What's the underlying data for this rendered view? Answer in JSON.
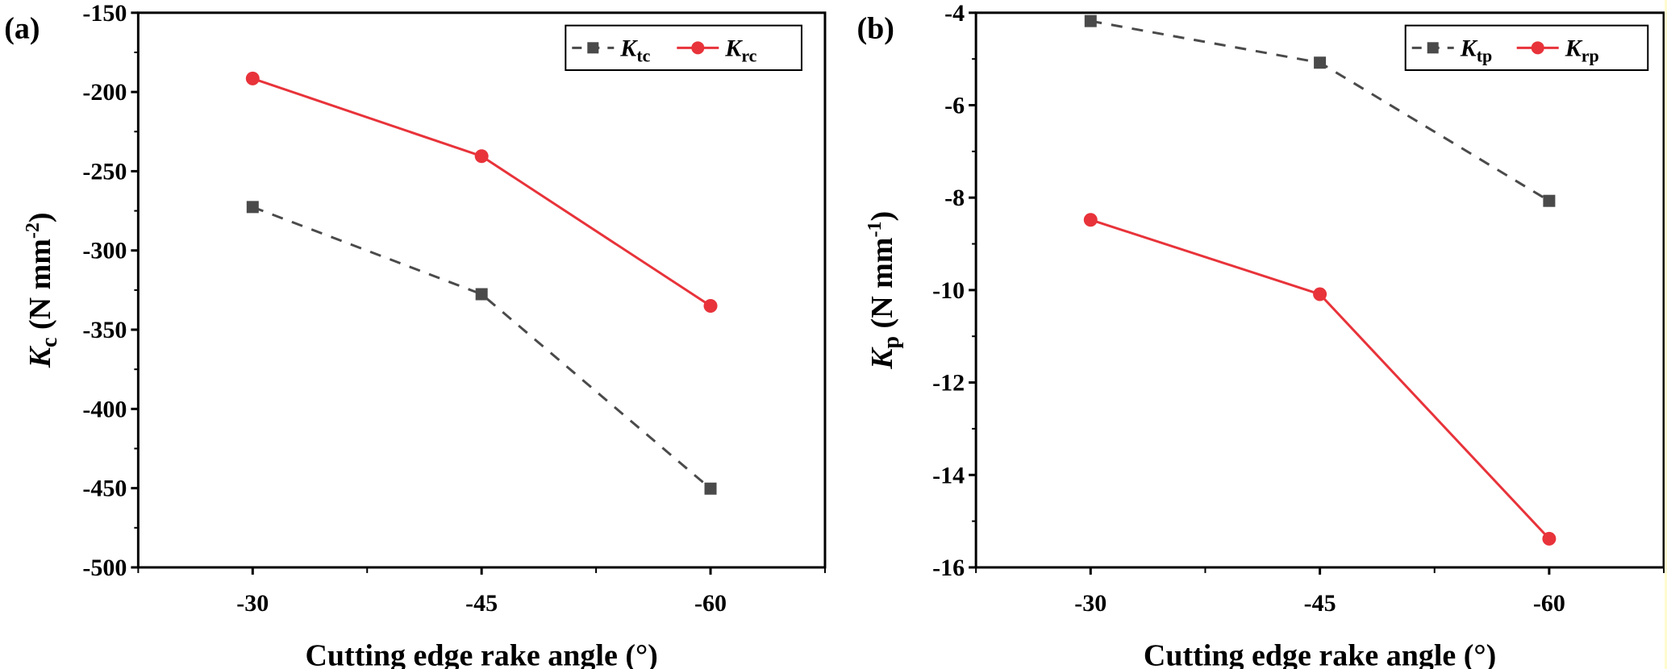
{
  "chart_data": [
    {
      "type": "line",
      "panel_label": "(a)",
      "title": "",
      "xlabel": "Cutting edge rake angle (°)",
      "ylabel": {
        "main": "K",
        "sub": "c",
        "unit": " (N mm",
        "sup": "-2",
        "close": ")"
      },
      "categories": [
        "-30",
        "-45",
        "-60"
      ],
      "ylim": [
        -500,
        -150
      ],
      "yticks": [
        -150,
        -200,
        -250,
        -300,
        -350,
        -400,
        -450,
        -500
      ],
      "grid": false,
      "legend_position": "top-right",
      "series": [
        {
          "name": "Ktc",
          "label_main": "K",
          "label_sub": "tc",
          "marker": "square",
          "line": "dashed",
          "color": "#4a4a4a",
          "values": [
            -272.6,
            -327.6,
            -450.3
          ]
        },
        {
          "name": "Krc",
          "label_main": "K",
          "label_sub": "rc",
          "marker": "circle",
          "line": "solid",
          "color": "#e8333a",
          "values": [
            -191.5,
            -240.5,
            -335.0
          ]
        }
      ]
    },
    {
      "type": "line",
      "panel_label": "(b)",
      "title": "",
      "xlabel": "Cutting edge rake angle (°)",
      "ylabel": {
        "main": "K",
        "sub": "p",
        "unit": " (N mm",
        "sup": "-1",
        "close": ")"
      },
      "categories": [
        "-30",
        "-45",
        "-60"
      ],
      "ylim": [
        -16,
        -4
      ],
      "yticks": [
        -4,
        -6,
        -8,
        -10,
        -12,
        -14,
        -16
      ],
      "grid": false,
      "legend_position": "top-right",
      "series": [
        {
          "name": "Ktp",
          "label_main": "K",
          "label_sub": "tp",
          "marker": "square",
          "line": "dashed",
          "color": "#4a4a4a",
          "values": [
            -4.18,
            -5.08,
            -8.07
          ]
        },
        {
          "name": "Krp",
          "label_main": "K",
          "label_sub": "rp",
          "marker": "circle",
          "line": "solid",
          "color": "#e8333a",
          "values": [
            -8.48,
            -10.09,
            -15.38
          ]
        }
      ]
    }
  ]
}
